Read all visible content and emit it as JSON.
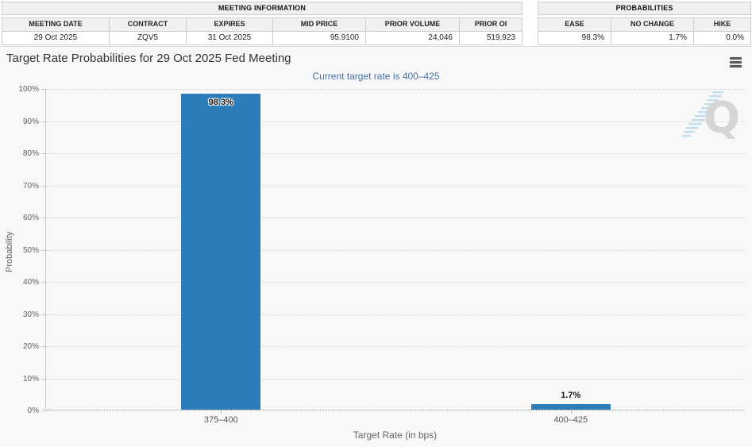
{
  "meeting_info_table": {
    "title": "MEETING INFORMATION",
    "columns": [
      "MEETING DATE",
      "CONTRACT",
      "EXPIRES",
      "MID PRICE",
      "PRIOR VOLUME",
      "PRIOR OI"
    ],
    "values": [
      "29 Oct 2025",
      "ZQV5",
      "31 Oct 2025",
      "95.9100",
      "24,046",
      "519,923"
    ]
  },
  "probabilities_table": {
    "title": "PROBABILITIES",
    "columns": [
      "EASE",
      "NO CHANGE",
      "HIKE"
    ],
    "values": [
      "98.3%",
      "1.7%",
      "0.0%"
    ]
  },
  "chart": {
    "menu_icon": "hamburger-menu-icon",
    "watermark_letter": "Q"
  },
  "chart_data": {
    "type": "bar",
    "title": "Target Rate Probabilities for 29 Oct 2025 Fed Meeting",
    "subtitle": "Current target rate is 400–425",
    "categories": [
      "375–400",
      "400–425"
    ],
    "values": [
      98.3,
      1.7
    ],
    "data_labels": [
      "98.3%",
      "1.7%"
    ],
    "xlabel": "Target Rate (in bps)",
    "ylabel": "Probability",
    "ylim": [
      0,
      100
    ],
    "ytick_labels": [
      "0%",
      "10%",
      "20%",
      "30%",
      "40%",
      "50%",
      "60%",
      "70%",
      "80%",
      "90%",
      "100%"
    ],
    "grid": "horizontal-dotted",
    "legend": "none",
    "bar_color": "#2b7cb9",
    "subtitle_color": "#4572a7",
    "watermark_stripe_color": "#bcd9ec",
    "watermark_letter_color": "#d2d2d2"
  }
}
